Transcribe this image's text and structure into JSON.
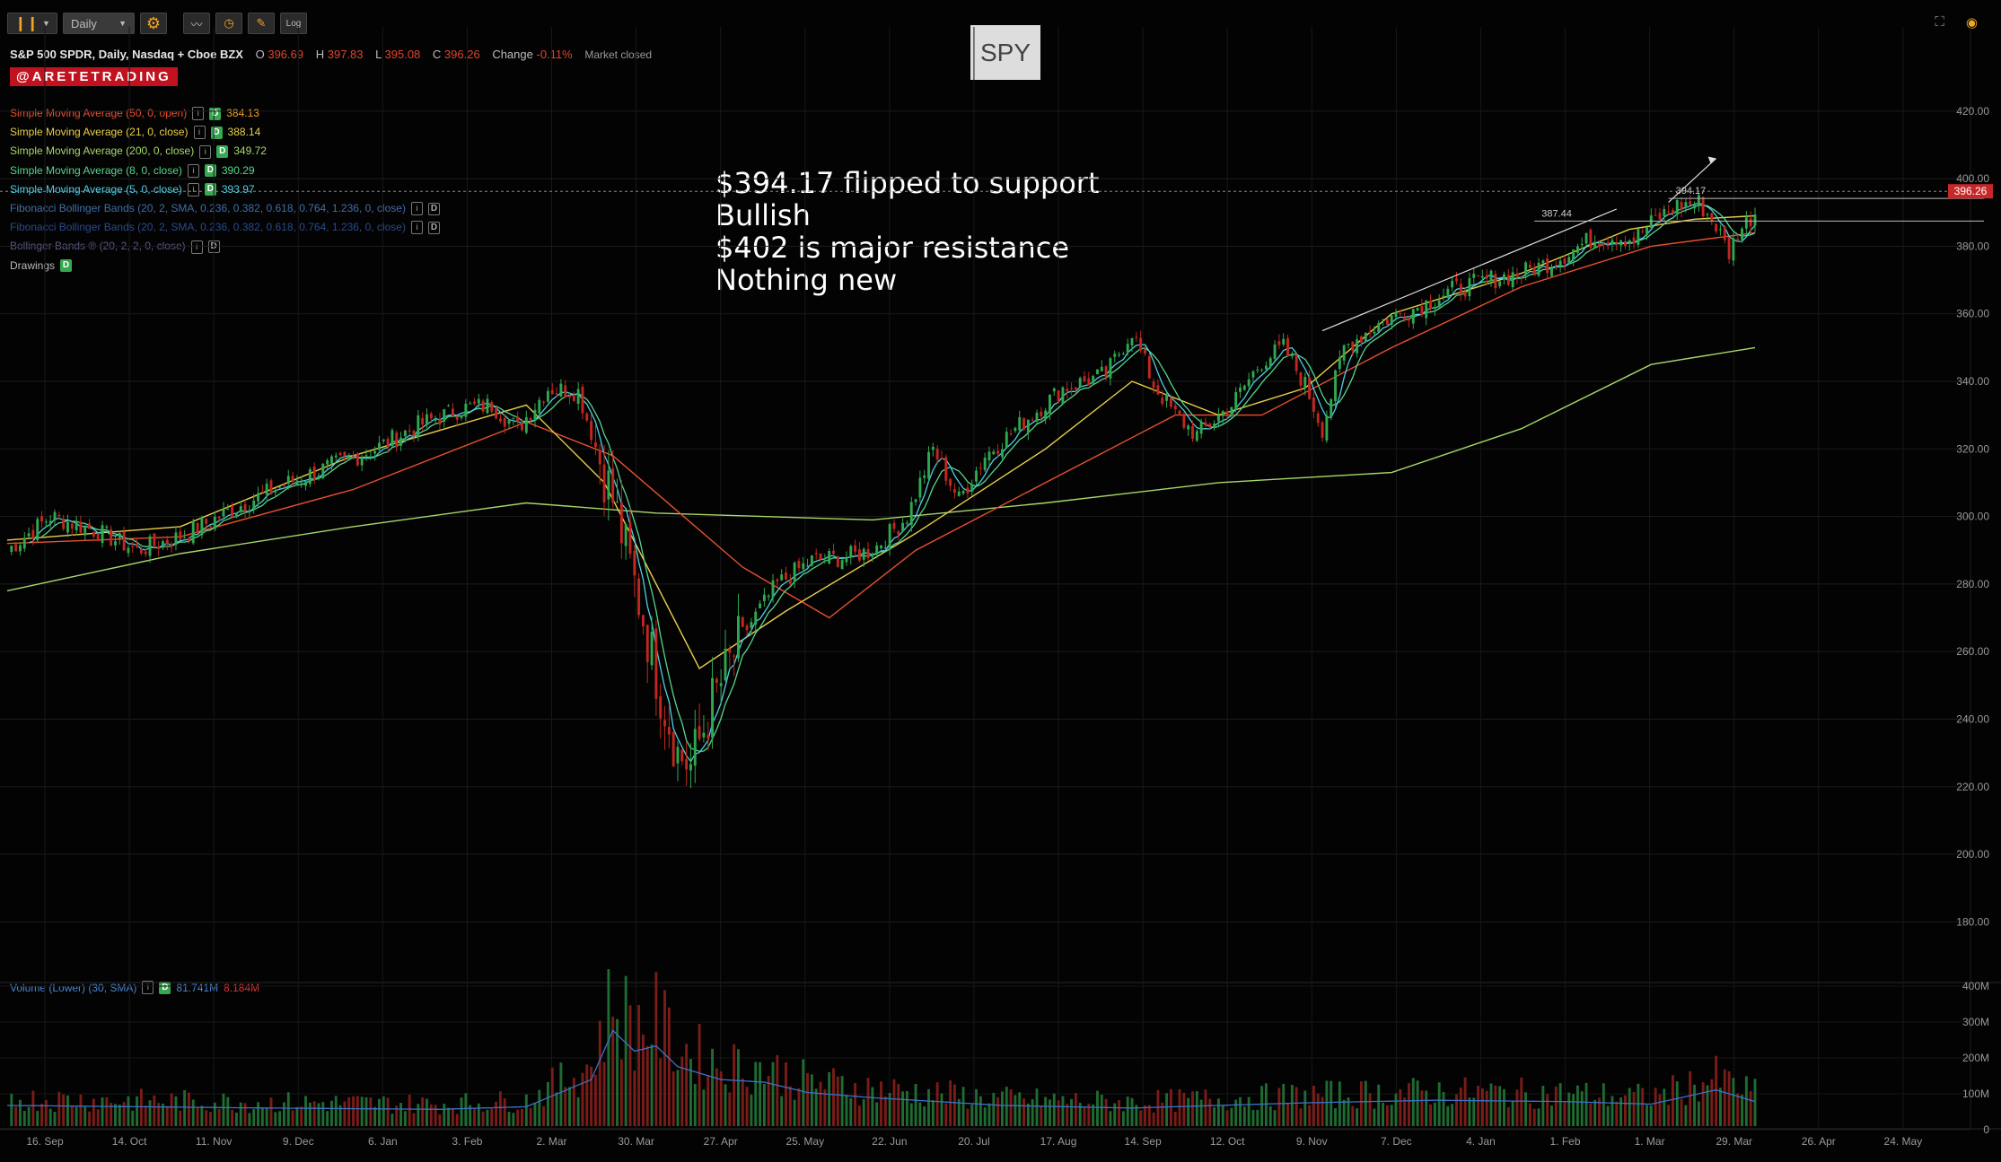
{
  "toolbar": {
    "chart_type": "candles",
    "timeframe": "Daily",
    "settings": "gear",
    "btn_compare": "compare",
    "btn_time": "clock",
    "btn_draw": "draw",
    "btn_log": "Log"
  },
  "header": {
    "title": "S&P 500 SPDR, Daily, Nasdaq + Cboe BZX",
    "o_label": "O",
    "o": "396.69",
    "h_label": "H",
    "h": "397.83",
    "l_label": "L",
    "l": "395.08",
    "c_label": "C",
    "c": "396.26",
    "change_label": "Change",
    "change": "-0.11%",
    "status": "Market closed"
  },
  "handle": "@ARETETRADING",
  "symbol": "SPY",
  "studies": [
    {
      "name": "Simple Moving Average (50, 0, open)",
      "value": "384.13",
      "color": "#e8502f",
      "vcolor": "#f0a030"
    },
    {
      "name": "Simple Moving Average (21, 0, close)",
      "value": "388.14",
      "color": "#e8d04a",
      "vcolor": "#e8d04a"
    },
    {
      "name": "Simple Moving Average (200, 0, close)",
      "value": "349.72",
      "color": "#a6d86a",
      "vcolor": "#a6d86a"
    },
    {
      "name": "Simple Moving Average (8, 0, close)",
      "value": "390.29",
      "color": "#56d68c",
      "vcolor": "#56d68c"
    },
    {
      "name": "Simple Moving Average (5, 0, close)",
      "value": "393.97",
      "color": "#4fcfe6",
      "vcolor": "#4fcfe6"
    },
    {
      "name": "Fibonacci Bollinger Bands (20, 2, SMA, 0.236, 0.382, 0.618, 0.764, 1.236, 0, close)",
      "value": "",
      "color": "#3f6ea8",
      "vcolor": "#3f6ea8"
    },
    {
      "name": "Fibonacci Bollinger Bands (20, 2, SMA, 0.236, 0.382, 0.618, 0.764, 1.236, 0, close)",
      "value": "",
      "color": "#2a4a8a",
      "vcolor": "#2a4a8a"
    },
    {
      "name": "Bollinger Bands ® (20, 2, 2, 0, close)",
      "value": "",
      "color": "#5a5a8a",
      "vcolor": "#5a5a8a"
    }
  ],
  "drawings_label": "Drawings",
  "note_lines": [
    "$394.17 flipped to support",
    "Bullish",
    "$402 is major resistance",
    "Nothing new"
  ],
  "volume": {
    "label": "Volume (Lower) (30, SMA)",
    "value": "81.741M",
    "sma": "8.184M"
  },
  "colors": {
    "up": "#2fa84f",
    "down": "#c0281f",
    "sma50": "#e8502f",
    "sma21": "#e8d04a",
    "sma200": "#a6d86a",
    "sma8": "#56d68c",
    "sma5": "#4fcfe6",
    "vol_sma": "#3a72c8",
    "last_price_bg": "#c62828"
  },
  "chart_data": {
    "type": "candlestick",
    "ylim": [
      170,
      425
    ],
    "y_ticks": [
      180,
      200,
      220,
      240,
      260,
      280,
      300,
      320,
      340,
      360,
      380,
      400,
      420
    ],
    "x_ticks": [
      "16. Sep",
      "14. Oct",
      "11. Nov",
      "9. Dec",
      "6. Jan",
      "3. Feb",
      "2. Mar",
      "30. Mar",
      "27. Apr",
      "25. May",
      "22. Jun",
      "20. Jul",
      "17. Aug",
      "14. Sep",
      "12. Oct",
      "9. Nov",
      "7. Dec",
      "4. Jan",
      "1. Feb",
      "1. Mar",
      "29. Mar",
      "26. Apr",
      "24. May"
    ],
    "price_path": [
      [
        0,
        290
      ],
      [
        10,
        300
      ],
      [
        20,
        296
      ],
      [
        30,
        290
      ],
      [
        40,
        294
      ],
      [
        55,
        304
      ],
      [
        65,
        310
      ],
      [
        75,
        315
      ],
      [
        85,
        320
      ],
      [
        95,
        327
      ],
      [
        105,
        332
      ],
      [
        112,
        333
      ],
      [
        118,
        326
      ],
      [
        125,
        338
      ],
      [
        132,
        337
      ],
      [
        137,
        317
      ],
      [
        140,
        305
      ],
      [
        143,
        290
      ],
      [
        147,
        270
      ],
      [
        151,
        248
      ],
      [
        155,
        230
      ],
      [
        158,
        226
      ],
      [
        163,
        245
      ],
      [
        170,
        265
      ],
      [
        178,
        280
      ],
      [
        186,
        287
      ],
      [
        194,
        288
      ],
      [
        200,
        290
      ],
      [
        208,
        300
      ],
      [
        214,
        320
      ],
      [
        220,
        305
      ],
      [
        226,
        318
      ],
      [
        234,
        327
      ],
      [
        244,
        338
      ],
      [
        254,
        342
      ],
      [
        260,
        355
      ],
      [
        265,
        339
      ],
      [
        270,
        330
      ],
      [
        275,
        324
      ],
      [
        283,
        333
      ],
      [
        290,
        346
      ],
      [
        295,
        350
      ],
      [
        300,
        339
      ],
      [
        304,
        326
      ],
      [
        309,
        350
      ],
      [
        318,
        358
      ],
      [
        326,
        362
      ],
      [
        334,
        367
      ],
      [
        342,
        370
      ],
      [
        350,
        372
      ],
      [
        358,
        376
      ],
      [
        366,
        382
      ],
      [
        372,
        383
      ],
      [
        376,
        382
      ],
      [
        381,
        388
      ],
      [
        386,
        392
      ],
      [
        391,
        393
      ],
      [
        395,
        386
      ],
      [
        398,
        378
      ],
      [
        400,
        384
      ],
      [
        404,
        390
      ],
      [
        408,
        396
      ]
    ],
    "price_high": "397.83",
    "price_low": "218.26",
    "last_price": "396.26",
    "level_labels": [
      {
        "value": 394.17,
        "label": "394.17"
      },
      {
        "value": 387.44,
        "label": "387.44"
      }
    ],
    "trendline_lower": [
      [
        304,
        355
      ],
      [
        372,
        391
      ]
    ],
    "trendline_upper_arrow": [
      [
        384,
        393
      ],
      [
        395,
        406
      ]
    ],
    "sma200_path": [
      [
        0,
        278
      ],
      [
        40,
        289
      ],
      [
        80,
        297
      ],
      [
        120,
        304
      ],
      [
        150,
        301
      ],
      [
        200,
        299
      ],
      [
        240,
        304
      ],
      [
        280,
        310
      ],
      [
        320,
        313
      ],
      [
        350,
        326
      ],
      [
        380,
        345
      ],
      [
        404,
        350
      ]
    ],
    "sma50_path": [
      [
        0,
        292
      ],
      [
        40,
        294
      ],
      [
        80,
        308
      ],
      [
        120,
        328
      ],
      [
        140,
        318
      ],
      [
        170,
        285
      ],
      [
        190,
        270
      ],
      [
        210,
        290
      ],
      [
        240,
        310
      ],
      [
        270,
        330
      ],
      [
        290,
        330
      ],
      [
        320,
        350
      ],
      [
        350,
        368
      ],
      [
        380,
        380
      ],
      [
        404,
        384
      ]
    ],
    "sma21_path": [
      [
        0,
        293
      ],
      [
        40,
        297
      ],
      [
        80,
        318
      ],
      [
        120,
        333
      ],
      [
        138,
        310
      ],
      [
        160,
        255
      ],
      [
        180,
        272
      ],
      [
        210,
        295
      ],
      [
        240,
        320
      ],
      [
        260,
        340
      ],
      [
        280,
        330
      ],
      [
        300,
        338
      ],
      [
        320,
        360
      ],
      [
        350,
        372
      ],
      [
        375,
        385
      ],
      [
        390,
        388
      ],
      [
        404,
        389
      ]
    ],
    "volume_ylim": [
      0,
      400
    ],
    "volume_ticks": [
      "400M",
      "300M",
      "200M",
      "100M",
      "0"
    ],
    "volume_path": [
      [
        0,
        80
      ],
      [
        30,
        75
      ],
      [
        60,
        70
      ],
      [
        100,
        65
      ],
      [
        120,
        75
      ],
      [
        135,
        180
      ],
      [
        140,
        370
      ],
      [
        145,
        290
      ],
      [
        150,
        310
      ],
      [
        155,
        230
      ],
      [
        165,
        180
      ],
      [
        175,
        170
      ],
      [
        185,
        130
      ],
      [
        200,
        110
      ],
      [
        230,
        80
      ],
      [
        260,
        70
      ],
      [
        300,
        90
      ],
      [
        330,
        100
      ],
      [
        360,
        95
      ],
      [
        380,
        85
      ],
      [
        395,
        140
      ],
      [
        404,
        95
      ]
    ]
  }
}
